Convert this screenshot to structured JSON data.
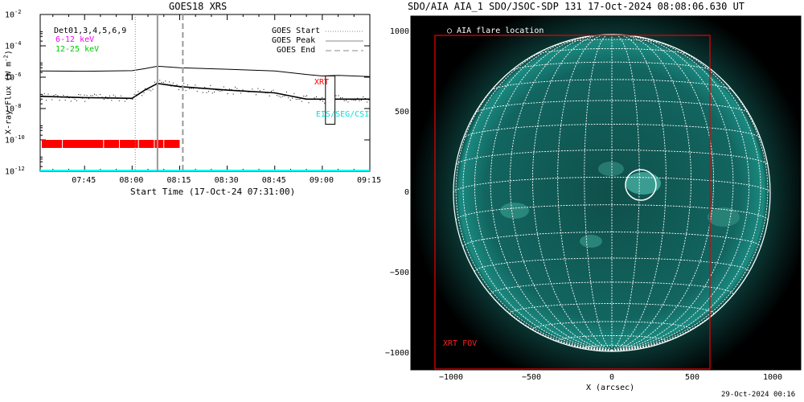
{
  "left_panel": {
    "title": "GOES18 XRS",
    "xlabel": "Start Time (17-Oct-24 07:31:00)",
    "ylabel": "X-ray Flux (W m",
    "ylabel_exp": "-2",
    "ylabel_close": ")",
    "y_ticks": [
      {
        "mant": "10",
        "exp": "-2",
        "value": -2
      },
      {
        "mant": "10",
        "exp": "-4",
        "value": -4
      },
      {
        "mant": "10",
        "exp": "-6",
        "value": -6
      },
      {
        "mant": "10",
        "exp": "-8",
        "value": -8
      },
      {
        "mant": "10",
        "exp": "-10",
        "value": -10
      },
      {
        "mant": "10",
        "exp": "-12",
        "value": -12
      }
    ],
    "x_ticks": [
      "07:45",
      "08:00",
      "08:15",
      "08:30",
      "08:45",
      "09:00",
      "09:15"
    ],
    "legend_left": [
      {
        "text": "Det01,3,4,5,6,9",
        "color": "#000000"
      },
      {
        "text": "6-12 keV",
        "color": "#ff00ff"
      },
      {
        "text": "12-25 keV",
        "color": "#00c800"
      }
    ],
    "legend_right": [
      {
        "text": "GOES Start",
        "style": "dotted"
      },
      {
        "text": "GOES Peak",
        "style": "solid"
      },
      {
        "text": "GOES End",
        "style": "dashed"
      }
    ],
    "xrt_label": "XRT",
    "eis_label": "EIS/SEG/CSI",
    "colors": {
      "xrt": "#ff0000",
      "eis": "#00ffff",
      "data_bar": "#ff0000",
      "baseline": "#00ffff"
    }
  },
  "right_panel": {
    "title": "SDO/AIA AIA_1 SDO/JSOC-SDP 131 17-Oct-2024 08:08:06.630 UT",
    "xlabel": "X (arcsec)",
    "x_ticks": [
      "−1000",
      "−500",
      "0",
      "500",
      "1000"
    ],
    "y_ticks": [
      "1000",
      "500",
      "0",
      "−500",
      "−1000"
    ],
    "flare_legend": "○ AIA flare location",
    "fov_label": "XRT FOV",
    "colors": {
      "sun": "#0e5a52",
      "fov": "#e00000",
      "background": "#000000"
    }
  },
  "footer": {
    "timestamp": "29-Oct-2024 00:16"
  },
  "chart_data": [
    {
      "type": "line",
      "title": "GOES18 XRS",
      "xlabel": "Start Time (17-Oct-24 07:31:00)",
      "ylabel": "X-ray Flux (W m^-2)",
      "y_scale": "log",
      "ylim": [
        1e-12,
        0.01
      ],
      "xlim": [
        "07:31",
        "09:15"
      ],
      "series": [
        {
          "x": [
            "07:31",
            "07:45",
            "08:00",
            "08:04",
            "08:08",
            "08:15",
            "08:30",
            "08:45",
            "08:55",
            "09:00",
            "09:05",
            "09:15"
          ],
          "values": [
            2.5e-06,
            2.4e-06,
            2.6e-06,
            3.5e-06,
            5e-06,
            4e-06,
            3.2e-06,
            2.5e-06,
            1.5e-06,
            1.2e-06,
            1.3e-06,
            1.1e-06
          ]
        },
        {
          "x": [
            "07:31",
            "07:45",
            "08:00",
            "08:04",
            "08:08",
            "08:15",
            "08:30",
            "08:45",
            "08:55",
            "09:00",
            "09:05",
            "09:15"
          ],
          "values": [
            6e-08,
            5e-08,
            4.5e-08,
            1.5e-07,
            4e-07,
            2.5e-07,
            1.5e-07,
            1e-07,
            4e-08,
            4e-08,
            4e-08,
            4e-08
          ]
        }
      ],
      "markers": {
        "goes_start": "08:01",
        "goes_peak": "08:08",
        "goes_end": "08:16"
      }
    }
  ]
}
